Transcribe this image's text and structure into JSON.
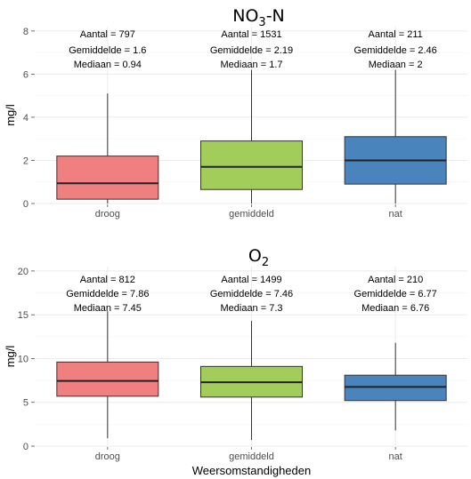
{
  "chart_data": [
    {
      "type": "boxplot",
      "title": "NO3-N",
      "title_parts": {
        "main": "NO",
        "sub": "3",
        "tail": "-N"
      },
      "ylabel": "mg/l",
      "xlabel": "",
      "ylim": [
        0,
        8.2
      ],
      "yticks": [
        0,
        2,
        4,
        6,
        8
      ],
      "grid": true,
      "legend": "none",
      "categories": [
        "droog",
        "gemiddeld",
        "nat"
      ],
      "colors": [
        "#f08080",
        "#a3cd5a",
        "#4a84bc"
      ],
      "boxes": [
        {
          "whisker_low": 0.0,
          "q1": 0.2,
          "median": 0.94,
          "q3": 2.2,
          "whisker_high": 5.1
        },
        {
          "whisker_low": 0.0,
          "q1": 0.65,
          "median": 1.7,
          "q3": 2.9,
          "whisker_high": 6.2
        },
        {
          "whisker_low": 0.0,
          "q1": 0.9,
          "median": 2.0,
          "q3": 3.1,
          "whisker_high": 6.2
        }
      ],
      "annotations": [
        [
          "Aantal = 797",
          "Gemiddelde = 1.6",
          "Mediaan = 0.94"
        ],
        [
          "Aantal = 1531",
          "Gemiddelde = 2.19",
          "Mediaan = 1.7"
        ],
        [
          "Aantal = 211",
          "Gemiddelde = 2.46",
          "Mediaan = 2"
        ]
      ]
    },
    {
      "type": "boxplot",
      "title": "O2",
      "title_parts": {
        "main": "O",
        "sub": "2",
        "tail": ""
      },
      "ylabel": "mg/l",
      "xlabel": "Weersomstandigheden",
      "ylim": [
        0,
        20.5
      ],
      "yticks": [
        0,
        5,
        10,
        15,
        20
      ],
      "grid": true,
      "legend": "none",
      "categories": [
        "droog",
        "gemiddeld",
        "nat"
      ],
      "colors": [
        "#f08080",
        "#a3cd5a",
        "#4a84bc"
      ],
      "boxes": [
        {
          "whisker_low": 0.9,
          "q1": 5.7,
          "median": 7.45,
          "q3": 9.6,
          "whisker_high": 15.4
        },
        {
          "whisker_low": 0.7,
          "q1": 5.6,
          "median": 7.3,
          "q3": 9.1,
          "whisker_high": 14.3
        },
        {
          "whisker_low": 1.8,
          "q1": 5.2,
          "median": 6.76,
          "q3": 8.1,
          "whisker_high": 11.8
        }
      ],
      "annotations": [
        [
          "Aantal = 812",
          "Gemiddelde = 7.86",
          "Mediaan = 7.45"
        ],
        [
          "Aantal = 1499",
          "Gemiddelde = 7.46",
          "Mediaan = 7.3"
        ],
        [
          "Aantal = 210",
          "Gemiddelde = 6.77",
          "Mediaan = 6.76"
        ]
      ]
    }
  ]
}
